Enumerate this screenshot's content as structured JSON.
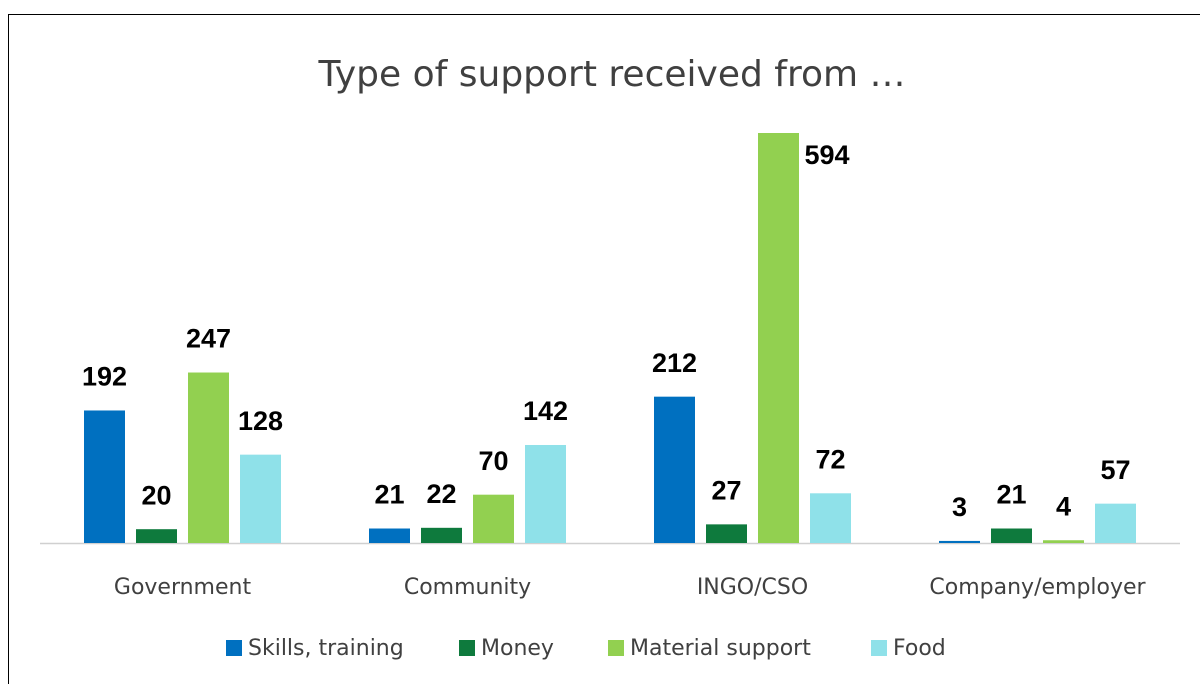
{
  "chart_data": {
    "type": "bar",
    "title": "Type of support received from …",
    "categories": [
      "Government",
      "Community",
      "INGO/CSO",
      "Company/employer"
    ],
    "series": [
      {
        "name": "Skills, training",
        "color": "#0070c0",
        "values": [
          192,
          21,
          212,
          3
        ]
      },
      {
        "name": "Money",
        "color": "#0e7a3d",
        "values": [
          20,
          22,
          27,
          21
        ]
      },
      {
        "name": "Material support",
        "color": "#92d050",
        "values": [
          247,
          70,
          594,
          4
        ]
      },
      {
        "name": "Food",
        "color": "#8fe1e9",
        "values": [
          128,
          142,
          72,
          57
        ]
      }
    ],
    "legend": "bottom"
  }
}
